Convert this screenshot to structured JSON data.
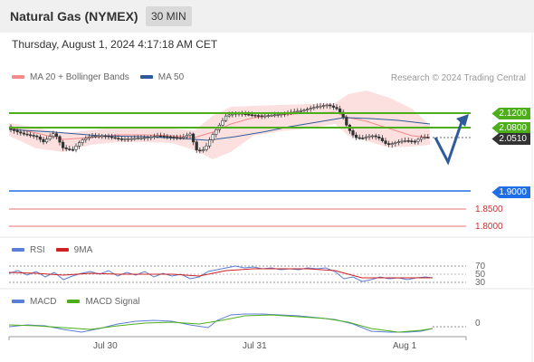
{
  "header": {
    "title": "Natural Gas (NYMEX)",
    "timeframe": "30 MIN"
  },
  "timestamp": "Thursday, August 1, 2024 4:17:18 AM CET",
  "price_legend": {
    "bollinger_label": "MA 20 + Bollinger Bands",
    "ma50_label": "MA 50"
  },
  "credit": "Research © 2024 Trading Central",
  "price_levels": {
    "resistance_2": "2.1200",
    "resistance_1": "2.0800",
    "current": "2.0510",
    "pivot": "1.9000",
    "support_1": "1.8500",
    "support_2": "1.8000"
  },
  "rsi_legend": {
    "rsi_label": "RSI",
    "ma_label": "9MA"
  },
  "rsi_levels": {
    "upper": "70",
    "mid": "50",
    "lower": "30"
  },
  "macd_legend": {
    "macd_label": "MACD",
    "signal_label": "MACD Signal"
  },
  "macd_levels": {
    "zero": "0"
  },
  "x_axis": {
    "labels": [
      "Jul 30",
      "Jul 31",
      "Aug 1"
    ]
  },
  "colors": {
    "resistance": "#4caf1a",
    "current": "#333333",
    "pivot": "#1e6ee8",
    "support": "#d32f2f",
    "bollinger": "#f58a8a",
    "ma50": "#2f5b9a",
    "rsi": "#5b7fd6",
    "rsi_ma": "#cc2222",
    "macd": "#5b7fd6",
    "macd_signal": "#4caf1a",
    "arrow": "#2f5b9a"
  },
  "icons": [
    "up-arrow-icon",
    "down-arrow-icon"
  ]
}
